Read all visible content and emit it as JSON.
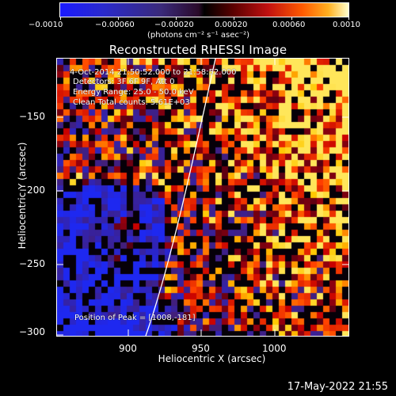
{
  "colorbar": {
    "labels": [
      "−0.0010",
      "−0.00060",
      "−0.00020",
      "0.00020",
      "0.00060",
      "0.0010"
    ],
    "unit": "(photons cm⁻² s⁻¹ asec⁻²)",
    "colors": [
      "#1a1aff",
      "#3a2a7a",
      "#000000",
      "#c01010",
      "#ff5a00",
      "#ffffcc"
    ]
  },
  "title": "Reconstructed RHESSI Image",
  "annotations": {
    "time": "4-Oct-2014 21:50:52.000 to 21:58:52.000",
    "detectors": "Detectors: 3F 6F 9F, Att 0",
    "energy": "Energy Range: 25.0 - 50.0 keV",
    "clean": "Clean    Total counts: 5.61E+03",
    "peak": "Position of Peak = [1008,-181]"
  },
  "axes": {
    "xlabel": "Heliocentric X (arcsec)",
    "ylabel": "Heliocentric Y (arcsec)",
    "xticks": [
      "900",
      "950",
      "1000"
    ],
    "yticks": [
      "−150",
      "−200",
      "−250",
      "−300"
    ],
    "xlim": [
      855,
      1040
    ],
    "ylim": [
      -300,
      -122
    ]
  },
  "footer_date": "17-May-2022 21:55"
}
